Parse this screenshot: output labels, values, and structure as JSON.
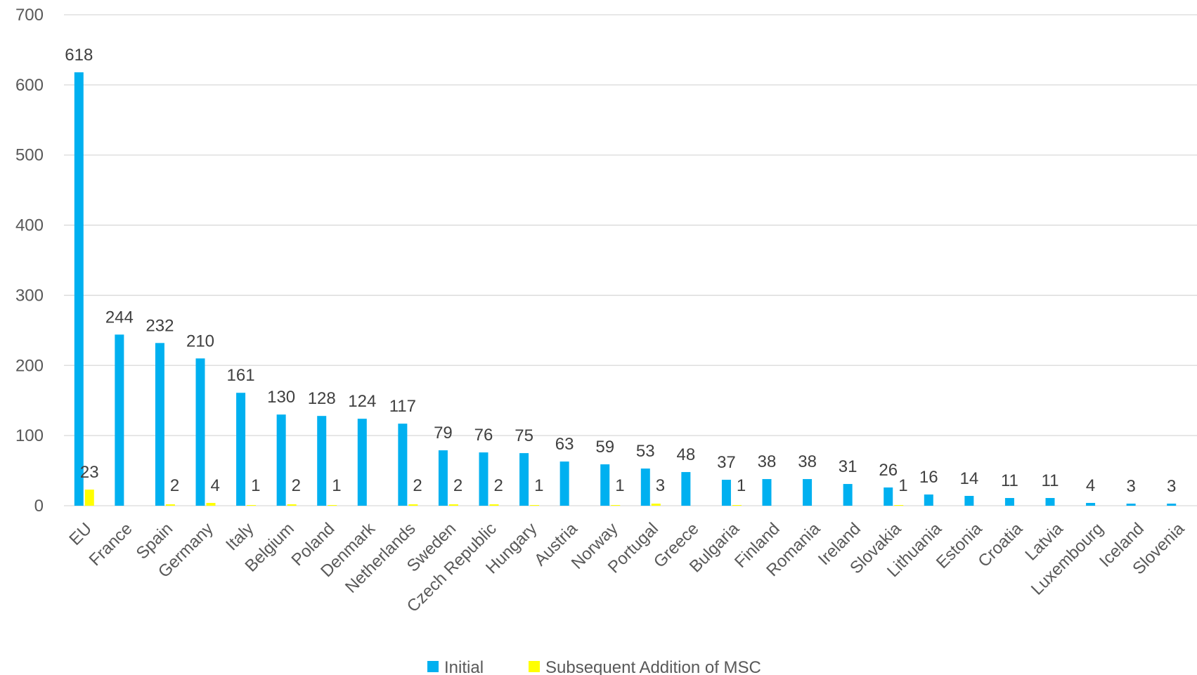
{
  "chart_data": {
    "type": "bar",
    "categories": [
      "EU",
      "France",
      "Spain",
      "Germany",
      "Italy",
      "Belgium",
      "Poland",
      "Denmark",
      "Netherlands",
      "Sweden",
      "Czech Republic",
      "Hungary",
      "Austria",
      "Norway",
      "Portugal",
      "Greece",
      "Bulgaria",
      "Finland",
      "Romania",
      "Ireland",
      "Slovakia",
      "Lithuania",
      "Estonia",
      "Croatia",
      "Latvia",
      "Luxembourg",
      "Iceland",
      "Slovenia"
    ],
    "series": [
      {
        "name": "Initial",
        "color": "#00B0F0",
        "values": [
          618,
          244,
          232,
          210,
          161,
          130,
          128,
          124,
          117,
          79,
          76,
          75,
          63,
          59,
          53,
          48,
          37,
          38,
          38,
          31,
          26,
          16,
          14,
          11,
          11,
          4,
          3,
          3
        ],
        "labels": [
          "618",
          "244",
          "232",
          "210",
          "161",
          "130",
          "128",
          "124",
          "117",
          "79",
          "76",
          "75",
          "63",
          "59",
          "53",
          "48",
          "37",
          "38",
          "38",
          "31",
          "26",
          "16",
          "14",
          "11",
          "11",
          "4",
          "3",
          "3"
        ]
      },
      {
        "name": "Subsequent Addition of MSC",
        "color": "#FFFF00",
        "values": [
          23,
          0,
          2,
          4,
          1,
          2,
          1,
          0,
          2,
          2,
          2,
          1,
          0,
          1,
          3,
          0,
          1,
          0,
          0,
          0,
          1,
          0,
          0,
          0,
          0,
          0,
          0,
          0
        ],
        "labels": [
          "23",
          "",
          "2",
          "4",
          "1",
          "2",
          "1",
          "",
          "2",
          "2",
          "2",
          "1",
          "",
          "1",
          "3",
          "",
          "1",
          "",
          "",
          "",
          "1",
          "",
          "",
          "",
          "",
          "",
          "",
          ""
        ]
      }
    ],
    "yticks": [
      "0",
      "100",
      "200",
      "300",
      "400",
      "500",
      "600",
      "700"
    ],
    "ylim": [
      0,
      700
    ],
    "grid": true,
    "legend": "bottom"
  }
}
